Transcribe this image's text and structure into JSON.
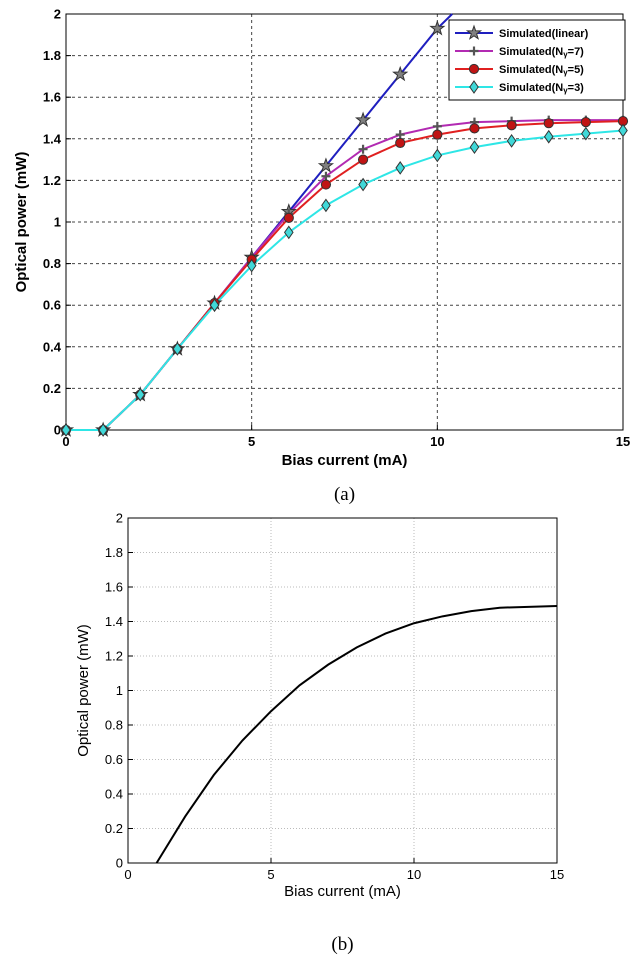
{
  "chart_data": [
    {
      "type": "line",
      "caption": "(a)",
      "xlabel": "Bias current (mA)",
      "ylabel": "Optical power (mW)",
      "xlim": [
        0,
        15
      ],
      "ylim": [
        0,
        2
      ],
      "xticks": [
        "0",
        "5",
        "10",
        "15"
      ],
      "yticks": [
        "0",
        "0.2",
        "0.4",
        "0.6",
        "0.8",
        "1",
        "1.2",
        "1.4",
        "1.6",
        "1.8",
        "2"
      ],
      "grid": true,
      "legend_position": "top-right",
      "series": [
        {
          "name": "Simulated(linear)",
          "color": "#1f1fbf",
          "marker": "star",
          "x": [
            0,
            1,
            2,
            3,
            4,
            5,
            6,
            7,
            8,
            9,
            10,
            10.4
          ],
          "y": [
            0,
            0,
            0.17,
            0.39,
            0.61,
            0.83,
            1.05,
            1.27,
            1.49,
            1.71,
            1.93,
            2.0
          ]
        },
        {
          "name": "Simulated(Nγ=7)",
          "color": "#b22ab2",
          "marker": "plus",
          "x": [
            0,
            1,
            2,
            3,
            4,
            5,
            6,
            7,
            8,
            9,
            10,
            11,
            12,
            13,
            14,
            15
          ],
          "y": [
            0,
            0,
            0.17,
            0.39,
            0.61,
            0.83,
            1.04,
            1.22,
            1.35,
            1.42,
            1.46,
            1.48,
            1.485,
            1.49,
            1.49,
            1.49
          ]
        },
        {
          "name": "Simulated(Nγ=5)",
          "color": "#e02020",
          "marker": "circle",
          "x": [
            0,
            1,
            2,
            3,
            4,
            5,
            6,
            7,
            8,
            9,
            10,
            11,
            12,
            13,
            14,
            15
          ],
          "y": [
            0,
            0,
            0.17,
            0.39,
            0.61,
            0.82,
            1.02,
            1.18,
            1.3,
            1.38,
            1.42,
            1.45,
            1.465,
            1.475,
            1.48,
            1.485
          ]
        },
        {
          "name": "Simulated(Nγ=3)",
          "color": "#2ee6e6",
          "marker": "diamond",
          "x": [
            0,
            1,
            2,
            3,
            4,
            5,
            6,
            7,
            8,
            9,
            10,
            11,
            12,
            13,
            14,
            15
          ],
          "y": [
            0,
            0,
            0.17,
            0.39,
            0.6,
            0.79,
            0.95,
            1.08,
            1.18,
            1.26,
            1.32,
            1.36,
            1.39,
            1.41,
            1.425,
            1.44
          ]
        }
      ]
    },
    {
      "type": "line",
      "caption": "(b)",
      "xlabel": "Bias current (mA)",
      "ylabel": "Optical power (mW)",
      "xlim": [
        0,
        15
      ],
      "ylim": [
        0,
        2
      ],
      "xticks": [
        "0",
        "5",
        "10",
        "15"
      ],
      "yticks": [
        "0",
        "0.2",
        "0.4",
        "0.6",
        "0.8",
        "1",
        "1.2",
        "1.4",
        "1.6",
        "1.8",
        "2"
      ],
      "grid": true,
      "series": [
        {
          "color": "#000000",
          "x": [
            1,
            2,
            3,
            4,
            5,
            6,
            7,
            8,
            9,
            10,
            11,
            12,
            13,
            14,
            15
          ],
          "y": [
            0,
            0.27,
            0.51,
            0.71,
            0.88,
            1.03,
            1.15,
            1.25,
            1.33,
            1.39,
            1.43,
            1.46,
            1.48,
            1.485,
            1.49
          ]
        }
      ]
    }
  ]
}
